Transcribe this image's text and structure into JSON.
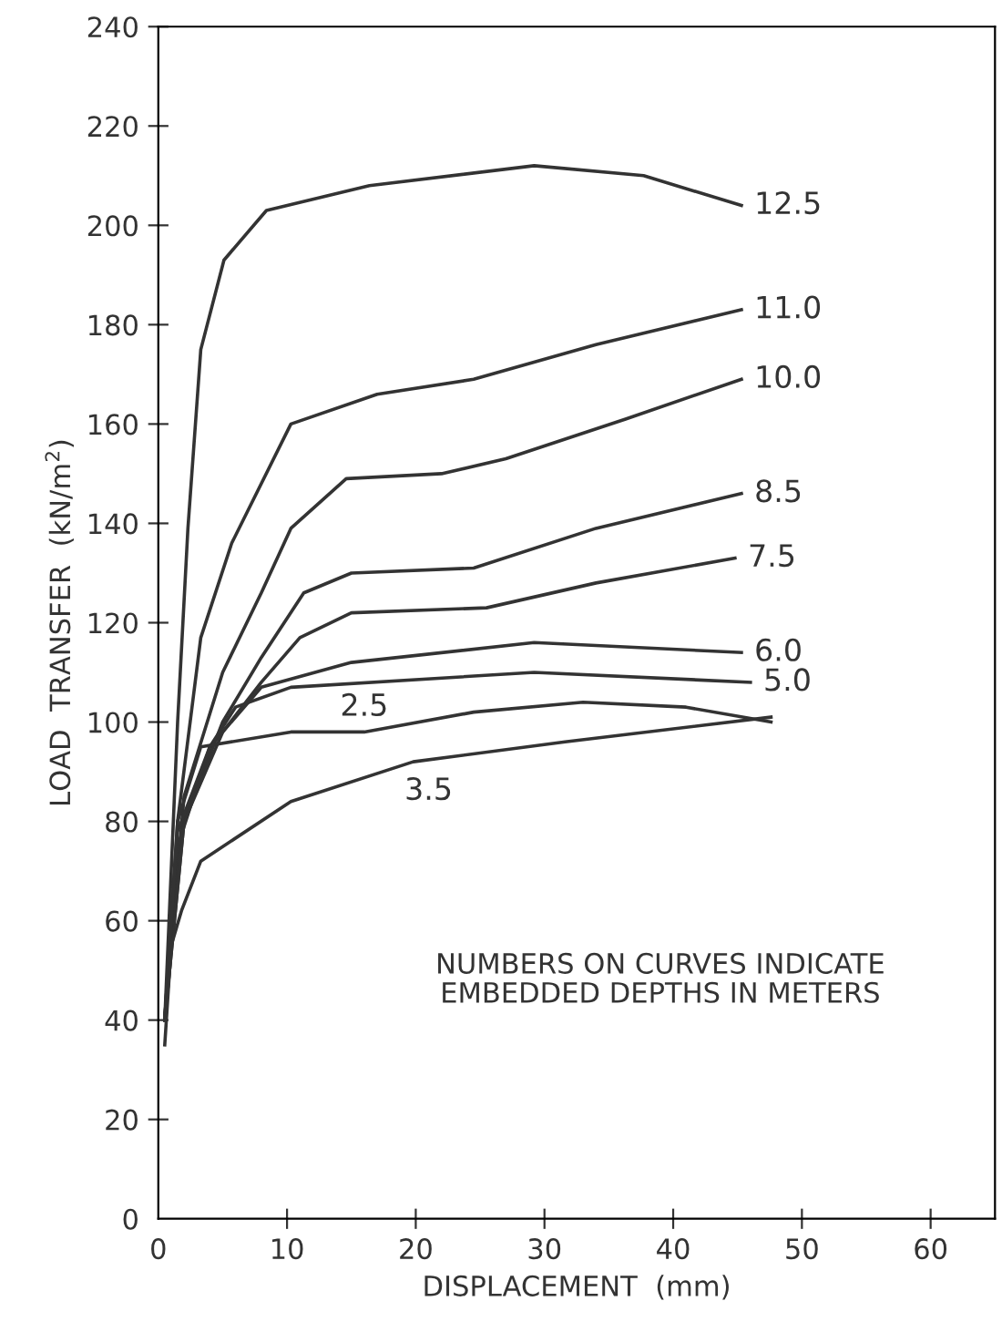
{
  "chart_data": {
    "type": "line",
    "xlabel": "DISPLACEMENT  (mm)",
    "ylabel": "LOAD  TRANSFER  (kN/m$^{2}$)",
    "xlim": [
      0,
      65
    ],
    "ylim": [
      0,
      240
    ],
    "xticks": [
      0,
      10,
      20,
      30,
      40,
      50,
      60
    ],
    "yticks": [
      0,
      20,
      40,
      60,
      80,
      100,
      120,
      140,
      160,
      180,
      200,
      220,
      240
    ],
    "grid": false,
    "legend": false,
    "marker": "none",
    "line_style": "solid",
    "series": [
      {
        "name": "12.5",
        "color": "#333333",
        "x": [
          0.5,
          1.5,
          2.3,
          3.3,
          5.1,
          8.4,
          16.4,
          29.2,
          37.7,
          45.3
        ],
        "values": [
          40,
          100,
          139,
          175,
          193,
          203,
          208,
          212,
          210,
          204
        ]
      },
      {
        "name": "11.0",
        "color": "#333333",
        "x": [
          0.5,
          1.5,
          3.3,
          5.7,
          10.3,
          17,
          24.5,
          34,
          45.3
        ],
        "values": [
          40,
          80,
          117,
          136,
          160,
          166,
          169,
          176,
          183
        ]
      },
      {
        "name": "10.0",
        "color": "#333333",
        "x": [
          0.5,
          2,
          5,
          8,
          10.3,
          14.6,
          22,
          27,
          36.3,
          45.3
        ],
        "values": [
          40,
          85,
          110,
          126,
          139,
          149,
          150,
          153,
          161,
          169
        ]
      },
      {
        "name": "8.5",
        "color": "#333333",
        "x": [
          0.5,
          2,
          5,
          8,
          11.3,
          15,
          24.5,
          34,
          45.3
        ],
        "values": [
          40,
          80,
          100,
          113,
          126,
          130,
          131,
          139,
          146
        ]
      },
      {
        "name": "7.5",
        "color": "#333333",
        "x": [
          0.5,
          2,
          5,
          8,
          11,
          15,
          25.5,
          34,
          44.8
        ],
        "values": [
          40,
          80,
          98,
          108,
          117,
          122,
          123,
          128,
          133
        ]
      },
      {
        "name": "6.0",
        "color": "#333333",
        "x": [
          0.5,
          1.5,
          4,
          8,
          15,
          29.2,
          45.3
        ],
        "values": [
          40,
          75,
          95,
          107,
          112,
          116,
          114
        ]
      },
      {
        "name": "5.0",
        "color": "#333333",
        "x": [
          0.5,
          1.5,
          4,
          6,
          10.3,
          29.2,
          46
        ],
        "values": [
          40,
          78,
          95,
          103,
          107,
          110,
          108
        ]
      },
      {
        "color": "#333333",
        "x": [
          0.5,
          1.5,
          3.3,
          10.3,
          16,
          24.5,
          33,
          41,
          47.6
        ],
        "values": [
          40,
          80,
          95,
          98,
          98,
          102,
          104,
          103,
          100
        ]
      },
      {
        "color": "#333333",
        "x": [
          0.5,
          1,
          1.8,
          3.3,
          10.3,
          19.8,
          31.6,
          47.6
        ],
        "values": [
          35,
          55,
          62,
          72,
          84,
          92,
          96,
          101
        ]
      }
    ],
    "annotations": [
      {
        "text": "2.5",
        "x": 16,
        "y": 98
      },
      {
        "text": "3.5",
        "x": 21,
        "y": 92
      },
      "NUMBERS ON CURVES INDICATE\nEMBEDDED DEPTHS IN METERS"
    ]
  }
}
